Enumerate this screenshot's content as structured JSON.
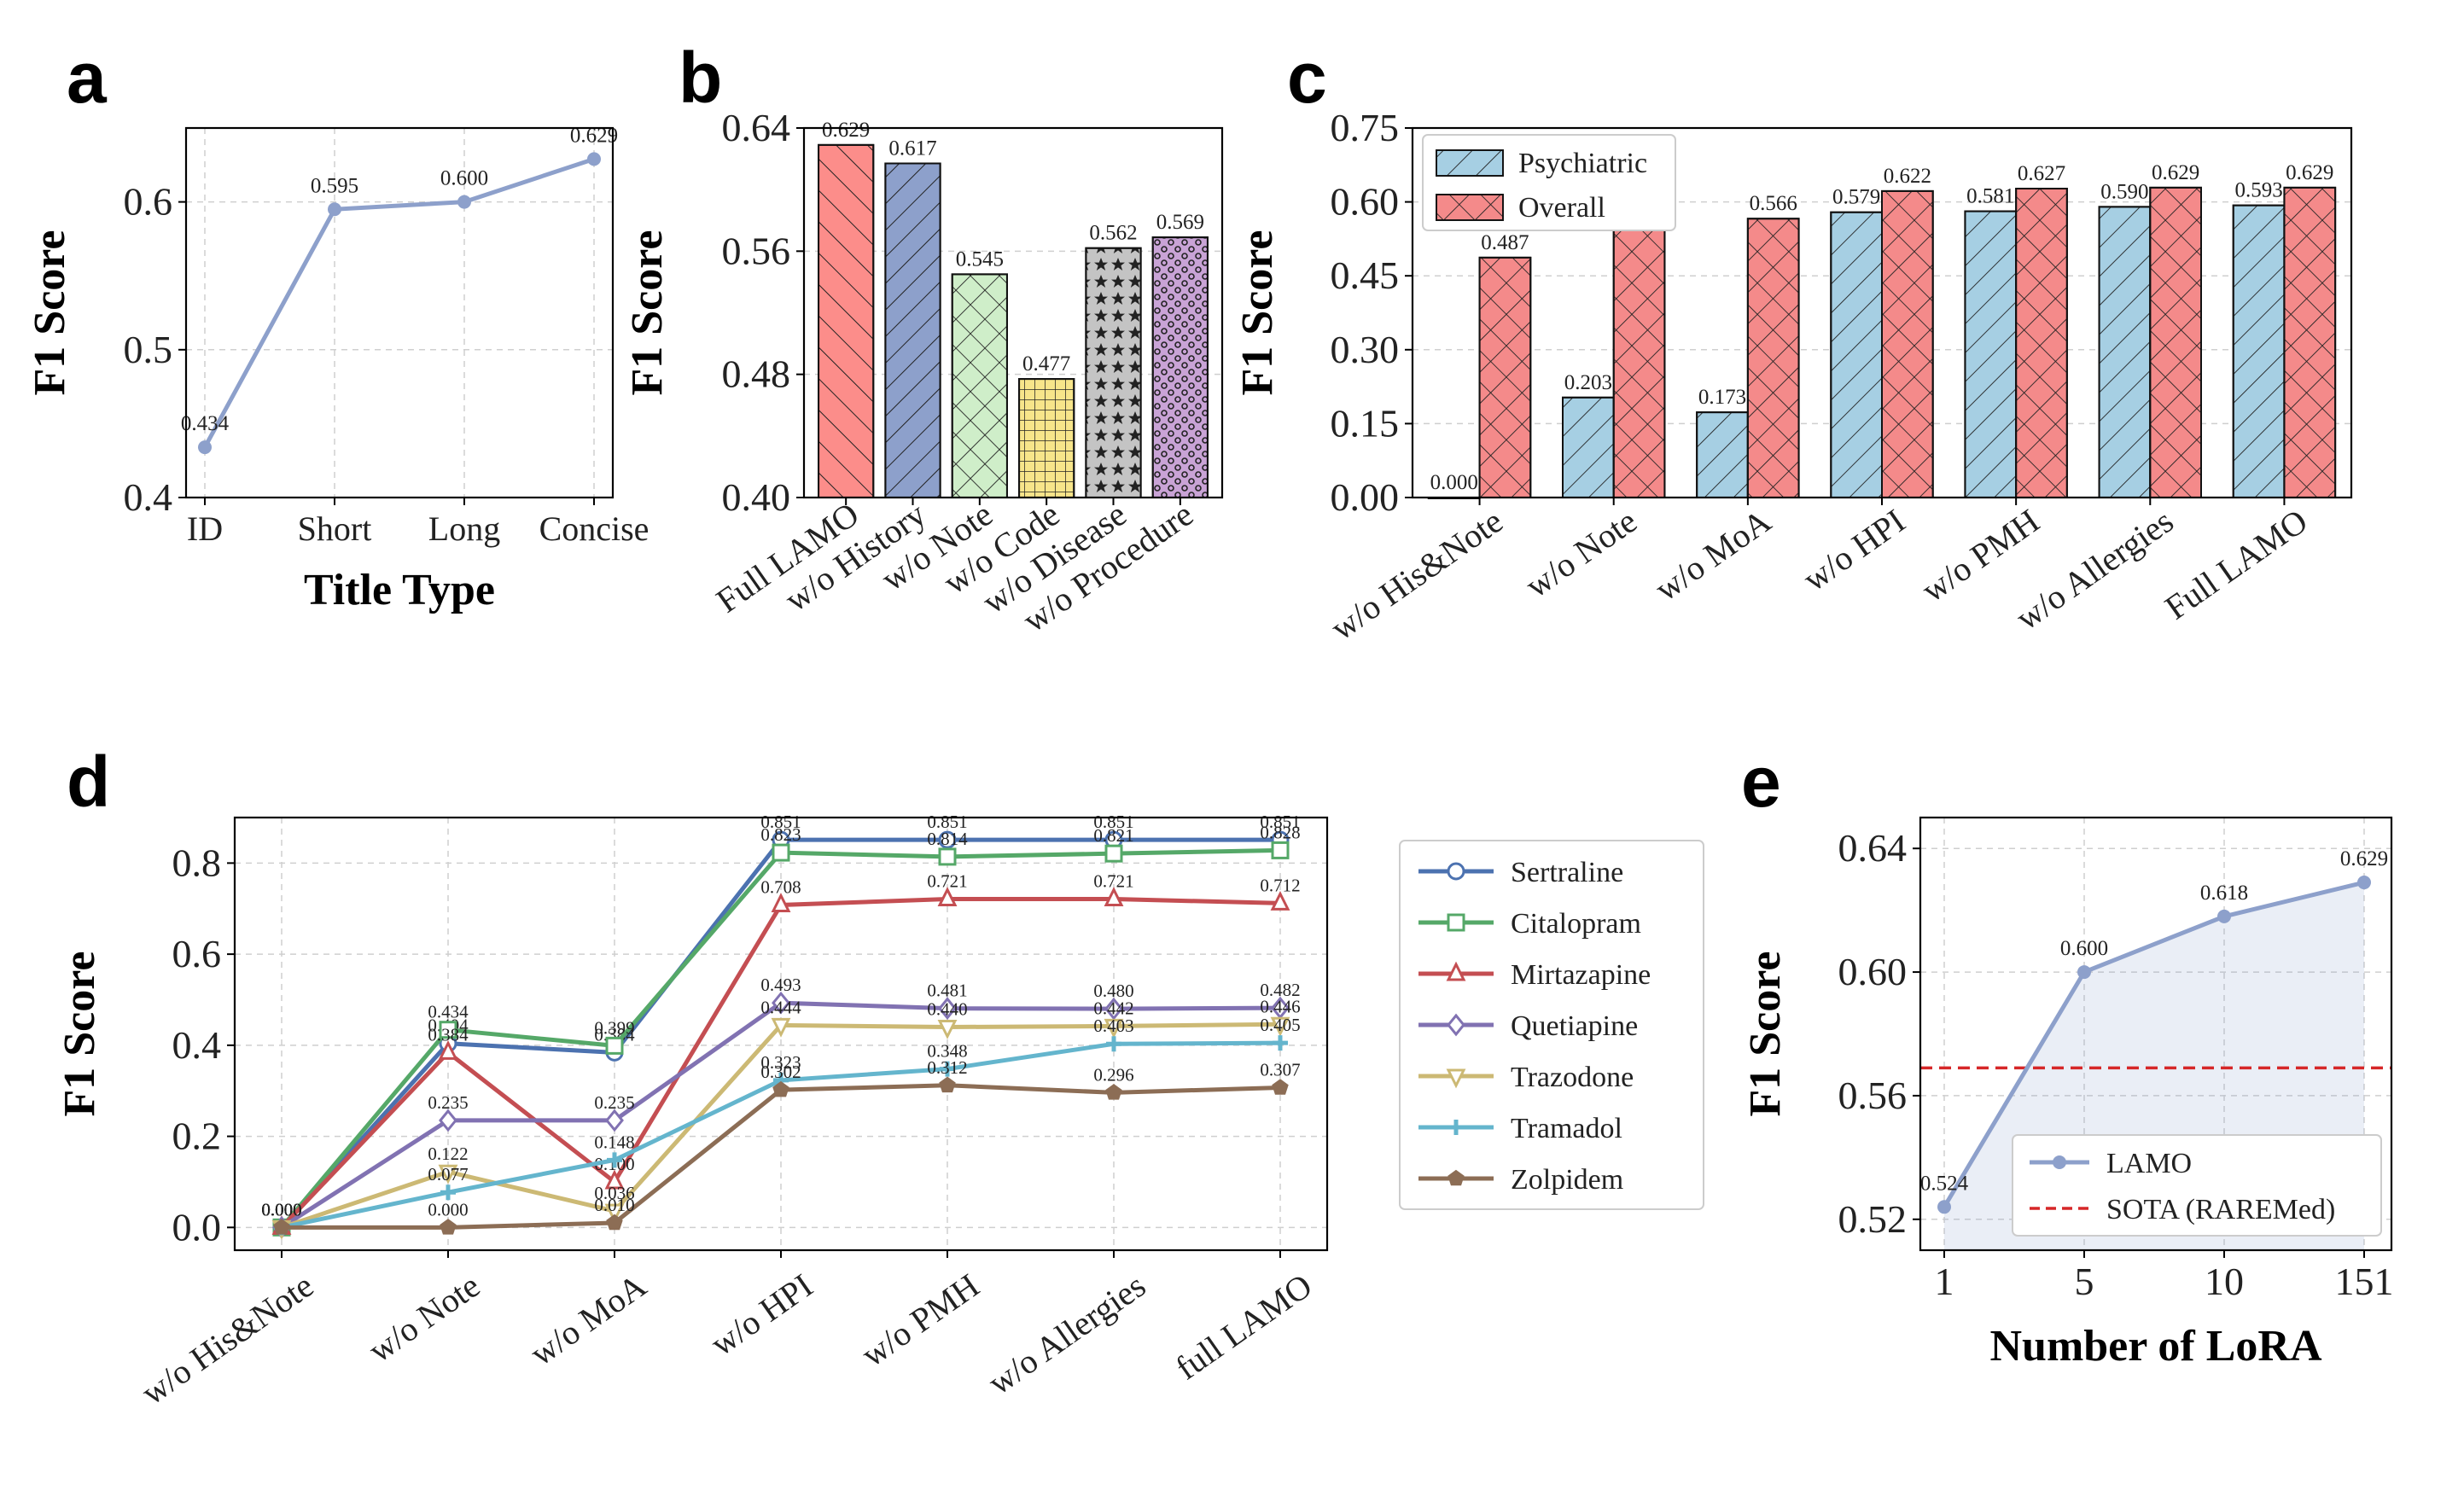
{
  "panels": {
    "a": "a",
    "b": "b",
    "c": "c",
    "d": "d",
    "e": "e"
  },
  "chart_data": [
    {
      "panel": "a",
      "type": "line",
      "categories": [
        "ID",
        "Short",
        "Long",
        "Concise"
      ],
      "values": [
        0.434,
        0.595,
        0.6,
        0.629
      ],
      "value_labels": [
        "0.434",
        "0.595",
        "0.600",
        "0.629"
      ],
      "xlabel": "Title Type",
      "ylabel": "F1 Score",
      "ylim": [
        0.4,
        0.65
      ],
      "yticks": [
        0.4,
        0.5,
        0.6
      ],
      "ytick_labels": [
        "0.4",
        "0.5",
        "0.6"
      ],
      "color": "#8da0cb",
      "grid": true
    },
    {
      "panel": "b",
      "type": "bar",
      "categories": [
        "Full LAMO",
        "w/o History",
        "w/o Note",
        "w/o Code",
        "w/o Disease",
        "w/o Procedure"
      ],
      "values": [
        0.629,
        0.617,
        0.545,
        0.477,
        0.562,
        0.569
      ],
      "value_labels": [
        "0.629",
        "0.617",
        "0.545",
        "0.477",
        "0.562",
        "0.569"
      ],
      "colors": [
        "#fc8d8a",
        "#8da0cb",
        "#cfeec9",
        "#f7e58a",
        "#c4c4c4",
        "#c9a3d6"
      ],
      "hatches": [
        "diag",
        "backdiag",
        "cross",
        "grid",
        "star",
        "dots"
      ],
      "xlabel": "",
      "ylabel": "F1 Score",
      "ylim": [
        0.4,
        0.64
      ],
      "yticks": [
        0.4,
        0.48,
        0.56,
        0.64
      ],
      "ytick_labels": [
        "0.40",
        "0.48",
        "0.56",
        "0.64"
      ],
      "grid": true
    },
    {
      "panel": "c",
      "type": "bar",
      "categories": [
        "w/o His&Note",
        "w/o Note",
        "w/o MoA",
        "w/o HPI",
        "w/o PMH",
        "w/o Allergies",
        "Full LAMO"
      ],
      "series": [
        {
          "name": "Psychiatric",
          "values": [
            0.0,
            0.203,
            0.173,
            0.579,
            0.581,
            0.59,
            0.593
          ],
          "value_labels": [
            "0.000",
            "0.203",
            "0.173",
            "0.579",
            "0.581",
            "0.590",
            "0.593"
          ],
          "color": "#a6cfe3"
        },
        {
          "name": "Overall",
          "values": [
            0.487,
            0.545,
            0.566,
            0.622,
            0.627,
            0.629,
            0.629
          ],
          "value_labels": [
            "0.487",
            "0.545",
            "0.566",
            "0.622",
            "0.627",
            "0.629",
            "0.629"
          ],
          "color": "#f48a8a"
        }
      ],
      "xlabel": "",
      "ylabel": "F1 Score",
      "ylim": [
        0,
        0.75
      ],
      "yticks": [
        0,
        0.15,
        0.3,
        0.45,
        0.6,
        0.75
      ],
      "ytick_labels": [
        "0.00",
        "0.15",
        "0.30",
        "0.45",
        "0.60",
        "0.75"
      ],
      "legend": "top-left",
      "grid": true
    },
    {
      "panel": "d",
      "type": "line",
      "categories": [
        "w/o His&Note",
        "w/o Note",
        "w/o MoA",
        "w/o HPI",
        "w/o PMH",
        "w/o Allergies",
        "full LAMO"
      ],
      "series": [
        {
          "name": "Sertraline",
          "values": [
            0.0,
            0.404,
            0.384,
            0.851,
            0.851,
            0.851,
            0.851
          ],
          "value_labels": [
            "0.000",
            "0.404",
            "0.384",
            "0.851",
            "0.851",
            "0.851",
            "0.851"
          ],
          "color": "#4c72b0",
          "marker": "circle"
        },
        {
          "name": "Citalopram",
          "values": [
            0.0,
            0.434,
            0.399,
            0.823,
            0.814,
            0.821,
            0.828
          ],
          "value_labels": [
            "0.000",
            "0.434",
            "0.399",
            "0.823",
            "0.814",
            "0.821",
            "0.828"
          ],
          "color": "#55a868",
          "marker": "square"
        },
        {
          "name": "Mirtazapine",
          "values": [
            0.0,
            0.384,
            0.1,
            0.708,
            0.721,
            0.721,
            0.712
          ],
          "value_labels": [
            "0.000",
            "0.384",
            "0.100",
            "0.708",
            "0.721",
            "0.721",
            "0.712"
          ],
          "color": "#c44e52",
          "marker": "triangle"
        },
        {
          "name": "Quetiapine",
          "values": [
            0.0,
            0.235,
            0.235,
            0.493,
            0.481,
            0.48,
            0.482
          ],
          "value_labels": [
            "0.000",
            "0.235",
            "0.235",
            "0.493",
            "0.481",
            "0.480",
            "0.482"
          ],
          "color": "#8172b2",
          "marker": "diamond"
        },
        {
          "name": "Trazodone",
          "values": [
            0.0,
            0.122,
            0.036,
            0.444,
            0.44,
            0.442,
            0.446
          ],
          "value_labels": [
            "0.000",
            "0.122",
            "0.036",
            "0.444",
            "0.440",
            "0.442",
            "0.446"
          ],
          "color": "#ccb974",
          "marker": "triangle-down"
        },
        {
          "name": "Tramadol",
          "values": [
            0.0,
            0.077,
            0.148,
            0.323,
            0.348,
            0.403,
            0.405
          ],
          "value_labels": [
            "0.000",
            "0.077",
            "0.148",
            "0.323",
            "0.348",
            "0.403",
            "0.405"
          ],
          "color": "#64b5cd",
          "marker": "plus"
        },
        {
          "name": "Zolpidem",
          "values": [
            0.0,
            0.0,
            0.01,
            0.302,
            0.312,
            0.296,
            0.307
          ],
          "value_labels": [
            "0.000",
            "0.000",
            "0.010",
            "0.302",
            "0.312",
            "0.296",
            "0.307"
          ],
          "color": "#8c6d55",
          "marker": "pentagon"
        }
      ],
      "xlabel": "",
      "ylabel": "F1 Score",
      "ylim": [
        -0.05,
        0.9
      ],
      "yticks": [
        0.0,
        0.2,
        0.4,
        0.6,
        0.8
      ],
      "ytick_labels": [
        "0.0",
        "0.2",
        "0.4",
        "0.6",
        "0.8"
      ],
      "legend": "right-outside",
      "grid": true
    },
    {
      "panel": "e",
      "type": "area",
      "categories": [
        "1",
        "5",
        "10",
        "151"
      ],
      "series": [
        {
          "name": "LAMO",
          "values": [
            0.524,
            0.6,
            0.618,
            0.629
          ],
          "value_labels": [
            "0.524",
            "0.600",
            "0.618",
            "0.629"
          ],
          "color": "#8da0cb"
        }
      ],
      "reference_line": {
        "name": "SOTA (RAREMed)",
        "value": 0.569,
        "color": "#d62728"
      },
      "xlabel": "Number of LoRA",
      "ylabel": "F1 Score",
      "ylim": [
        0.51,
        0.65
      ],
      "yticks": [
        0.52,
        0.56,
        0.6,
        0.64
      ],
      "ytick_labels": [
        "0.52",
        "0.56",
        "0.60",
        "0.64"
      ],
      "legend": "bottom-right",
      "grid": true
    }
  ]
}
